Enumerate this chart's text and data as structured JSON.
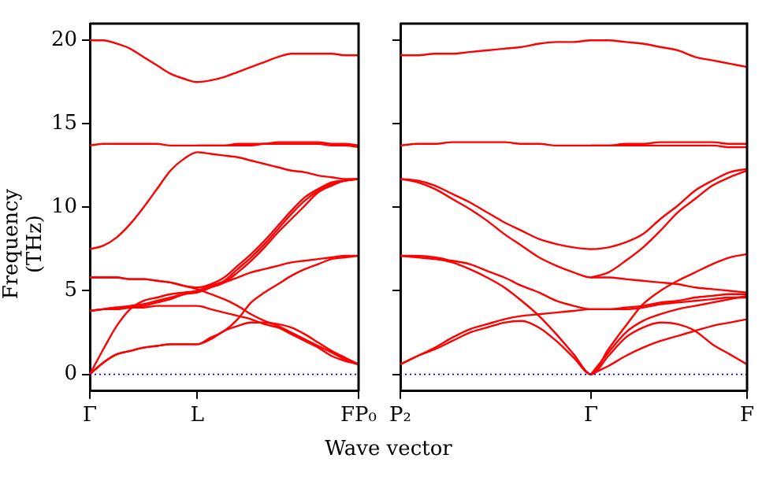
{
  "chart_data": [
    {
      "type": "line",
      "ylabel": "Frequency (THz)",
      "categories": [
        "Γ",
        null,
        null,
        null,
        null,
        null,
        null,
        null,
        "L",
        null,
        null,
        null,
        null,
        null,
        null,
        null,
        null,
        null,
        null,
        null,
        "FP₀"
      ],
      "ylim": [
        -1,
        21
      ],
      "yticks": [
        0,
        5,
        10,
        15,
        20
      ],
      "grid": false,
      "legend": false,
      "marker": "none",
      "line_style": "solid",
      "ref_lines": [
        {
          "axis": "y",
          "value": 0,
          "color": "#0000ff",
          "line_style": "dotted"
        }
      ],
      "series": [
        {
          "color": "#ff0000",
          "values": [
            20.0,
            20.0,
            19.8,
            19.5,
            19.0,
            18.5,
            18.0,
            17.7,
            17.5,
            17.6,
            17.8,
            18.1,
            18.4,
            18.7,
            19.0,
            19.2,
            19.2,
            19.2,
            19.2,
            19.1,
            19.1
          ]
        },
        {
          "color": "#ff0000",
          "values": [
            13.7,
            13.8,
            13.8,
            13.8,
            13.8,
            13.8,
            13.7,
            13.7,
            13.7,
            13.7,
            13.7,
            13.8,
            13.8,
            13.8,
            13.9,
            13.9,
            13.9,
            13.9,
            13.8,
            13.8,
            13.7
          ]
        },
        {
          "color": "#ff0000",
          "values": [
            null,
            null,
            null,
            null,
            null,
            null,
            null,
            null,
            13.7,
            13.7,
            13.7,
            13.7,
            13.7,
            13.8,
            13.8,
            13.8,
            13.8,
            13.8,
            13.7,
            13.7,
            13.6
          ]
        },
        {
          "color": "#ff0000",
          "values": [
            7.5,
            7.7,
            8.2,
            9.0,
            10.0,
            11.1,
            12.2,
            12.9,
            13.3,
            13.2,
            13.1,
            13.0,
            12.8,
            12.6,
            12.4,
            12.2,
            12.1,
            11.9,
            11.8,
            11.7,
            11.7
          ]
        },
        {
          "color": "#ff0000",
          "values": [
            0,
            1.5,
            2.9,
            3.9,
            4.4,
            4.6,
            4.8,
            4.9,
            5.0,
            5.3,
            5.6,
            6.3,
            7.0,
            7.8,
            8.7,
            9.6,
            10.4,
            11.0,
            11.4,
            11.6,
            11.7
          ]
        },
        {
          "color": "#ff0000",
          "values": [
            5.8,
            5.8,
            5.8,
            5.7,
            5.7,
            5.6,
            5.5,
            5.3,
            5.2,
            5.4,
            5.8,
            6.5,
            7.2,
            8.0,
            8.9,
            9.8,
            10.6,
            11.1,
            11.5,
            11.6,
            11.7
          ]
        },
        {
          "color": "#ff0000",
          "values": [
            3.8,
            3.9,
            4.0,
            4.1,
            4.2,
            4.4,
            4.6,
            4.8,
            4.9,
            5.2,
            5.5,
            6.1,
            6.8,
            7.6,
            8.5,
            9.3,
            10.1,
            10.9,
            11.3,
            11.6,
            11.7
          ]
        },
        {
          "color": "#ff0000",
          "values": [
            3.8,
            3.9,
            3.9,
            4.0,
            4.1,
            4.3,
            4.5,
            4.8,
            5.0,
            5.3,
            5.5,
            5.8,
            6.1,
            6.3,
            6.5,
            6.7,
            6.8,
            6.9,
            7.0,
            7.1,
            7.1
          ]
        },
        {
          "color": "#ff0000",
          "values": [
            0,
            0.7,
            1.2,
            1.4,
            1.6,
            1.7,
            1.8,
            1.8,
            1.8,
            2.2,
            2.6,
            3.3,
            4.3,
            4.9,
            5.4,
            5.9,
            6.3,
            6.6,
            6.9,
            7.0,
            7.1
          ]
        },
        {
          "color": "#ff0000",
          "values": [
            0,
            0.7,
            1.2,
            1.4,
            1.6,
            1.7,
            1.8,
            1.8,
            1.8,
            2.1,
            2.6,
            2.9,
            3.1,
            3.1,
            3.0,
            2.8,
            2.4,
            1.9,
            1.4,
            1.0,
            0.6
          ]
        },
        {
          "color": "#ff0000",
          "values": [
            3.8,
            3.9,
            4.0,
            4.0,
            4.0,
            4.1,
            4.1,
            4.1,
            4.1,
            3.9,
            3.7,
            3.5,
            3.3,
            3.0,
            2.8,
            2.4,
            2.0,
            1.6,
            1.1,
            0.8,
            0.6
          ]
        },
        {
          "color": "#ff0000",
          "values": [
            5.8,
            5.8,
            5.8,
            5.7,
            5.7,
            5.6,
            5.5,
            5.3,
            5.1,
            4.8,
            4.5,
            4.1,
            3.6,
            3.2,
            2.9,
            2.5,
            2.1,
            1.7,
            1.3,
            0.9,
            0.6
          ]
        }
      ]
    },
    {
      "type": "line",
      "xlabel": "Wave vector",
      "categories": [
        "P₂",
        null,
        null,
        null,
        null,
        null,
        null,
        null,
        null,
        null,
        null,
        "Γ",
        null,
        null,
        null,
        null,
        null,
        null,
        null,
        null,
        "F"
      ],
      "ylim": [
        -1,
        21
      ],
      "yticks": [
        {
          "value": 0,
          "label": null
        },
        {
          "value": 5,
          "label": null
        },
        {
          "value": 10,
          "label": null
        },
        {
          "value": 15,
          "label": null
        },
        {
          "value": 20,
          "label": null
        }
      ],
      "tick_labels": "x",
      "grid": false,
      "legend": false,
      "marker": "none",
      "line_style": "solid",
      "ref_lines": [
        {
          "axis": "y",
          "value": 0,
          "color": "#0000ff",
          "line_style": "dotted"
        }
      ],
      "series": [
        {
          "color": "#ff0000",
          "values": [
            19.1,
            19.1,
            19.2,
            19.2,
            19.3,
            19.4,
            19.5,
            19.6,
            19.8,
            19.9,
            19.9,
            20.0,
            20.0,
            19.9,
            19.8,
            19.6,
            19.4,
            19.0,
            18.8,
            18.6,
            18.4
          ]
        },
        {
          "color": "#ff0000",
          "values": [
            13.7,
            13.8,
            13.8,
            13.9,
            13.9,
            13.9,
            13.9,
            13.8,
            13.8,
            13.7,
            13.7,
            13.7,
            13.7,
            13.8,
            13.8,
            13.9,
            13.9,
            13.9,
            13.9,
            13.8,
            13.8
          ]
        },
        {
          "color": "#ff0000",
          "values": [
            null,
            null,
            null,
            null,
            null,
            null,
            null,
            null,
            null,
            null,
            null,
            13.7,
            13.7,
            13.7,
            13.7,
            13.7,
            13.7,
            13.7,
            13.7,
            13.6,
            13.6
          ]
        },
        {
          "color": "#ff0000",
          "values": [
            11.7,
            11.6,
            11.3,
            10.8,
            10.3,
            9.7,
            9.1,
            8.6,
            8.1,
            7.8,
            7.6,
            7.5,
            7.6,
            7.9,
            8.4,
            9.3,
            10.1,
            11.0,
            11.6,
            12.1,
            12.3
          ]
        },
        {
          "color": "#ff0000",
          "values": [
            null,
            null,
            null,
            null,
            null,
            null,
            null,
            null,
            null,
            null,
            null,
            5.8,
            6.1,
            6.8,
            7.6,
            8.6,
            9.7,
            10.5,
            11.3,
            11.8,
            12.2
          ]
        },
        {
          "color": "#ff0000",
          "values": [
            11.7,
            11.5,
            11.1,
            10.5,
            9.9,
            9.2,
            8.4,
            7.7,
            7.0,
            6.5,
            6.1,
            5.8,
            5.8,
            5.7,
            5.6,
            5.5,
            5.4,
            5.2,
            5.1,
            5.0,
            4.9
          ]
        },
        {
          "color": "#ff0000",
          "values": [
            7.1,
            7.1,
            7.0,
            6.8,
            6.6,
            6.2,
            5.8,
            5.3,
            4.9,
            4.4,
            4.1,
            3.9,
            3.9,
            4.0,
            4.1,
            4.3,
            4.4,
            4.6,
            4.7,
            4.8,
            4.8
          ]
        },
        {
          "color": "#ff0000",
          "values": [
            7.1,
            7.0,
            6.9,
            6.7,
            6.3,
            5.8,
            5.2,
            4.4,
            3.5,
            2.4,
            1.2,
            0,
            1.5,
            2.9,
            4.2,
            5.0,
            5.6,
            6.1,
            6.6,
            7.0,
            7.2
          ]
        },
        {
          "color": "#ff0000",
          "values": [
            0.6,
            1.1,
            1.5,
            2.0,
            2.5,
            2.8,
            3.1,
            3.2,
            2.8,
            2.0,
            1.0,
            0,
            1.1,
            2.2,
            2.8,
            3.1,
            3.0,
            2.6,
            1.8,
            1.2,
            0.6
          ]
        },
        {
          "color": "#ff0000",
          "values": [
            0.6,
            1.1,
            1.6,
            2.2,
            2.7,
            3.0,
            3.3,
            3.5,
            3.6,
            3.7,
            3.8,
            3.9,
            3.9,
            3.9,
            4.0,
            4.2,
            4.3,
            4.4,
            4.5,
            4.6,
            4.6
          ]
        },
        {
          "color": "#ff0000",
          "values": [
            null,
            null,
            null,
            null,
            null,
            null,
            null,
            null,
            null,
            null,
            null,
            0,
            0.5,
            1.1,
            1.6,
            2.0,
            2.3,
            2.6,
            2.9,
            3.1,
            3.3
          ]
        },
        {
          "color": "#ff0000",
          "values": [
            null,
            null,
            null,
            null,
            null,
            null,
            null,
            null,
            null,
            null,
            null,
            0,
            1.3,
            2.5,
            3.2,
            3.6,
            3.9,
            4.1,
            4.3,
            4.5,
            4.7
          ]
        }
      ]
    }
  ]
}
